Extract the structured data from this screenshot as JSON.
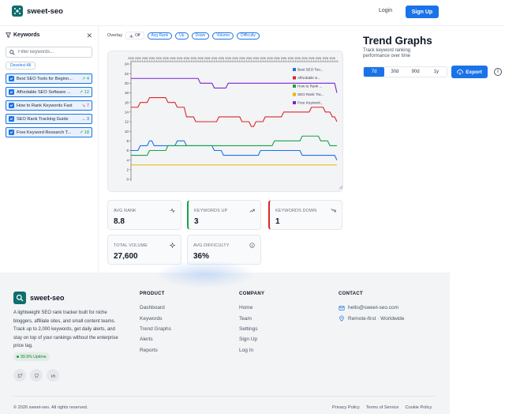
{
  "header": {
    "brand_name": "sweet-seo",
    "login_label": "Login",
    "signup_label": "Sign Up"
  },
  "sidebar": {
    "title": "Keywords",
    "filter_placeholder": "Filter keywords...",
    "deselect_label": "Deselect All",
    "keywords": [
      {
        "name": "Best SEO Tools for Beginn...",
        "trend": "↗ 4",
        "trend_color": "#16a34a",
        "color": "#1a73e8"
      },
      {
        "name": "Affordable SEO Software ...",
        "trend": "↗ 12",
        "trend_color": "#16a34a",
        "color": "#dc2626"
      },
      {
        "name": "How to Rank Keywords Fast",
        "trend": "↘ 7",
        "trend_color": "#dc2626",
        "color": "#16a34a"
      },
      {
        "name": "SEO Rank Tracking Guide",
        "trend": "→ 3",
        "trend_color": "#4b5563",
        "color": "#eab308"
      },
      {
        "name": "Free Keyword Research T...",
        "trend": "↗ 18",
        "trend_color": "#16a34a",
        "color": "#7e22ce"
      }
    ]
  },
  "toolbar": {
    "overlay_label": "Overlay",
    "overlay_state": "Off",
    "metrics": [
      "Avg Rank",
      "Up",
      "Down",
      "Volume",
      "Difficulty"
    ]
  },
  "chart_data": {
    "type": "line",
    "x": [
      1,
      2,
      3,
      4,
      5,
      6,
      7,
      8,
      9,
      10,
      11,
      12,
      13,
      14,
      15,
      16,
      17,
      18,
      19,
      20,
      21,
      22,
      23,
      24,
      25,
      26,
      27,
      28,
      29,
      30,
      31,
      32,
      33,
      34,
      35,
      36,
      37,
      38,
      39,
      40,
      41,
      42,
      43,
      44,
      45,
      46,
      47,
      48,
      49,
      50,
      51,
      52,
      53,
      54,
      55,
      56,
      57,
      58,
      59,
      60,
      61,
      62,
      63,
      64,
      65,
      66,
      67,
      68,
      69,
      70,
      71,
      72,
      73,
      74,
      75,
      76,
      77,
      78,
      79,
      80,
      81,
      82,
      83,
      84,
      85,
      86,
      87,
      88,
      89,
      90
    ],
    "x_tick_label": "2026",
    "ylim": [
      0,
      24
    ],
    "yticks": [
      0,
      2,
      4,
      6,
      8,
      10,
      12,
      14,
      16,
      18,
      20,
      22,
      24
    ],
    "grid": false,
    "legend_position": "top-right",
    "series": [
      {
        "name": "Best SEO Too...",
        "color": "#1a73e8",
        "values": [
          6,
          6,
          6,
          6,
          7,
          7,
          7,
          7,
          8,
          8,
          7,
          7,
          7,
          7,
          7,
          7,
          7,
          7,
          7,
          7,
          8,
          8,
          8,
          8,
          7,
          7,
          7,
          7,
          7,
          7,
          7,
          7,
          7,
          7,
          7,
          7,
          6,
          6,
          6,
          6,
          5,
          5,
          5,
          5,
          5,
          5,
          5,
          5,
          5,
          5,
          5,
          5,
          5,
          5,
          5,
          5,
          6,
          6,
          6,
          6,
          6,
          6,
          6,
          6,
          6,
          6,
          6,
          6,
          6,
          6,
          6,
          6,
          6,
          6,
          5,
          5,
          5,
          5,
          5,
          5,
          5,
          5,
          5,
          5,
          5,
          5,
          5,
          5,
          5,
          4
        ]
      },
      {
        "name": "Affordable S...",
        "color": "#dc2626",
        "values": [
          15,
          15,
          15,
          15,
          16,
          16,
          16,
          16,
          17,
          17,
          17,
          17,
          17,
          17,
          17,
          17,
          16,
          16,
          16,
          16,
          15,
          15,
          15,
          15,
          13,
          13,
          13,
          13,
          12,
          12,
          12,
          12,
          12,
          12,
          12,
          12,
          12,
          12,
          13,
          13,
          13,
          13,
          13,
          13,
          13,
          13,
          13,
          13,
          12,
          12,
          12,
          12,
          11,
          11,
          12,
          12,
          12,
          12,
          13,
          13,
          13,
          13,
          13,
          13,
          13,
          13,
          14,
          14,
          14,
          14,
          14,
          14,
          14,
          14,
          14,
          14,
          14,
          14,
          15,
          15,
          15,
          15,
          15,
          15,
          14,
          14,
          14,
          13,
          13,
          12
        ]
      },
      {
        "name": "How to Rank ...",
        "color": "#16a34a",
        "values": [
          5,
          5,
          5,
          5,
          5,
          5,
          5,
          5,
          6,
          6,
          6,
          6,
          6,
          6,
          6,
          6,
          7,
          7,
          7,
          7,
          7,
          7,
          7,
          7,
          7,
          7,
          7,
          7,
          7,
          7,
          7,
          7,
          7,
          7,
          7,
          7,
          7,
          7,
          7,
          7,
          7,
          7,
          7,
          7,
          7,
          7,
          7,
          7,
          7,
          7,
          7,
          7,
          7,
          7,
          7,
          7,
          7,
          7,
          7,
          7,
          7,
          7,
          8,
          8,
          8,
          8,
          8,
          8,
          8,
          8,
          8,
          8,
          8,
          8,
          9,
          9,
          9,
          9,
          9,
          9,
          9,
          9,
          8,
          8,
          8,
          8,
          7,
          7,
          7,
          7
        ]
      },
      {
        "name": "SEO Rank Tra...",
        "color": "#eab308",
        "values": [
          3,
          3,
          3,
          3,
          3,
          3,
          3,
          3,
          3,
          3,
          3,
          3,
          3,
          3,
          3,
          3,
          3,
          3,
          3,
          3,
          3,
          3,
          3,
          3,
          3,
          3,
          3,
          3,
          3,
          3,
          3,
          3,
          3,
          3,
          3,
          3,
          3,
          3,
          3,
          3,
          3,
          3,
          3,
          3,
          3,
          3,
          3,
          3,
          3,
          3,
          3,
          3,
          3,
          3,
          3,
          3,
          3,
          3,
          3,
          3,
          3,
          3,
          3,
          3,
          3,
          3,
          3,
          3,
          3,
          3,
          3,
          3,
          3,
          3,
          3,
          3,
          3,
          3,
          3,
          3,
          3,
          3,
          3,
          3,
          3,
          3,
          3,
          3,
          3,
          3
        ]
      },
      {
        "name": "Free Keyword...",
        "color": "#7e22ce",
        "values": [
          21,
          21,
          21,
          21,
          21,
          21,
          21,
          21,
          21,
          21,
          21,
          21,
          21,
          21,
          21,
          21,
          21,
          21,
          21,
          21,
          21,
          21,
          21,
          21,
          21,
          21,
          21,
          21,
          21,
          21,
          20,
          20,
          20,
          20,
          20,
          20,
          19,
          19,
          19,
          19,
          19,
          19,
          20,
          20,
          20,
          20,
          20,
          20,
          20,
          20,
          20,
          20,
          20,
          20,
          20,
          20,
          20,
          20,
          20,
          20,
          20,
          20,
          20,
          20,
          20,
          20,
          20,
          20,
          20,
          20,
          20,
          20,
          20,
          20,
          20,
          20,
          20,
          20,
          20,
          20,
          20,
          20,
          20,
          20,
          20,
          20,
          20,
          20,
          20,
          18
        ]
      }
    ]
  },
  "stats": [
    {
      "label": "AVG RANK",
      "value": "8.8",
      "icon": "activity-icon",
      "accent": ""
    },
    {
      "label": "KEYWORDS UP",
      "value": "3",
      "icon": "trending-up-icon",
      "accent": "#16a34a"
    },
    {
      "label": "KEYWORDS DOWN",
      "value": "1",
      "icon": "trending-down-icon",
      "accent": "#dc2626"
    },
    {
      "label": "TOTAL VOLUME",
      "value": "27,600",
      "icon": "sparkle-icon",
      "accent": ""
    },
    {
      "label": "AVG DIFFICULTY",
      "value": "36%",
      "icon": "info-icon",
      "accent": ""
    }
  ],
  "panel": {
    "title": "Trend Graphs",
    "subtitle": "Track keyword ranking performance over time",
    "ranges": [
      "7d",
      "30d",
      "90d",
      "1y"
    ],
    "active_range": "7d",
    "export_label": "Export"
  },
  "footer": {
    "brand_name": "sweet-seo",
    "description": "A lightweight SEO rank tracker built for niche bloggers, affiliate sites, and small content teams. Track up to 2,000 keywords, get daily alerts, and stay on top of your rankings without the enterprise price tag.",
    "uptime": "99.9% Uptime",
    "product": {
      "heading": "PRODUCT",
      "links": [
        "Dashboard",
        "Keywords",
        "Trend Graphs",
        "Alerts",
        "Reports"
      ]
    },
    "company": {
      "heading": "COMPANY",
      "links": [
        "Home",
        "Team",
        "Settings",
        "Sign Up",
        "Log In"
      ]
    },
    "contact": {
      "heading": "CONTACT",
      "email": "hello@sweet-seo.com",
      "location": "Remote-first · Worldwide"
    },
    "copyright": "© 2026 sweet-seo. All rights reserved.",
    "legal": [
      "Privacy Policy",
      "Terms of Service",
      "Cookie Policy"
    ]
  }
}
